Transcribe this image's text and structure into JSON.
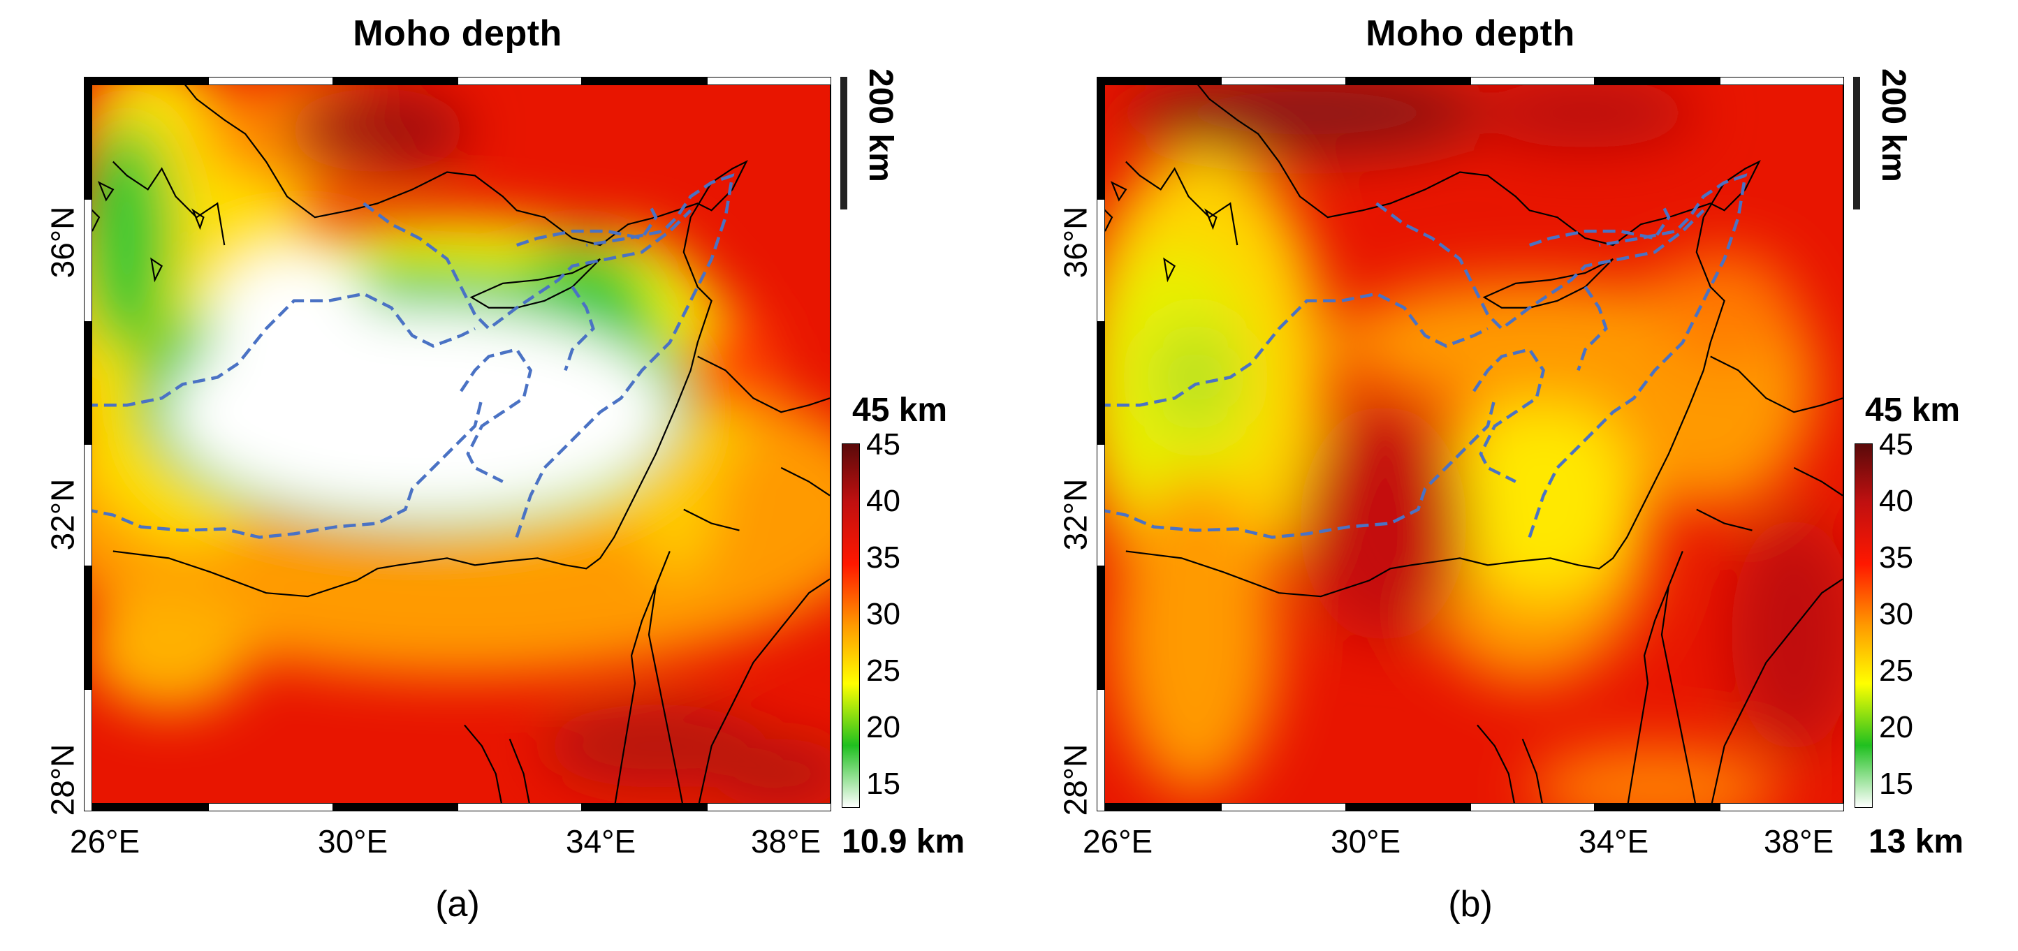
{
  "panels": [
    {
      "id": "a",
      "title": "Moho depth",
      "lat_labels": [
        "36°N",
        "32°N",
        "28°N"
      ],
      "lon_labels": [
        "26°E",
        "30°E",
        "34°E",
        "38°E"
      ],
      "scale_label": "200 km",
      "colorbar": {
        "max_label": "45 km",
        "min_label": "10.9 km",
        "ticks": [
          "45",
          "40",
          "35",
          "30",
          "25",
          "20",
          "15"
        ]
      },
      "caption": "(a)"
    },
    {
      "id": "b",
      "title": "Moho depth",
      "lat_labels": [
        "36°N",
        "32°N",
        "28°N"
      ],
      "lon_labels": [
        "26°E",
        "30°E",
        "34°E",
        "38°E"
      ],
      "scale_label": "200 km",
      "colorbar": {
        "max_label": "45 km",
        "min_label": "13 km",
        "ticks": [
          "45",
          "40",
          "35",
          "30",
          "25",
          "20",
          "15"
        ]
      },
      "caption": "(b)"
    }
  ],
  "colors": {
    "white": "#ffffff",
    "green": "#22c722",
    "yellow": "#ffff00",
    "orange": "#ff9900",
    "red": "#ee1100",
    "dark_red": "#8a1010",
    "boundary_dashed": "#4a72c4",
    "coastline": "#000000"
  }
}
